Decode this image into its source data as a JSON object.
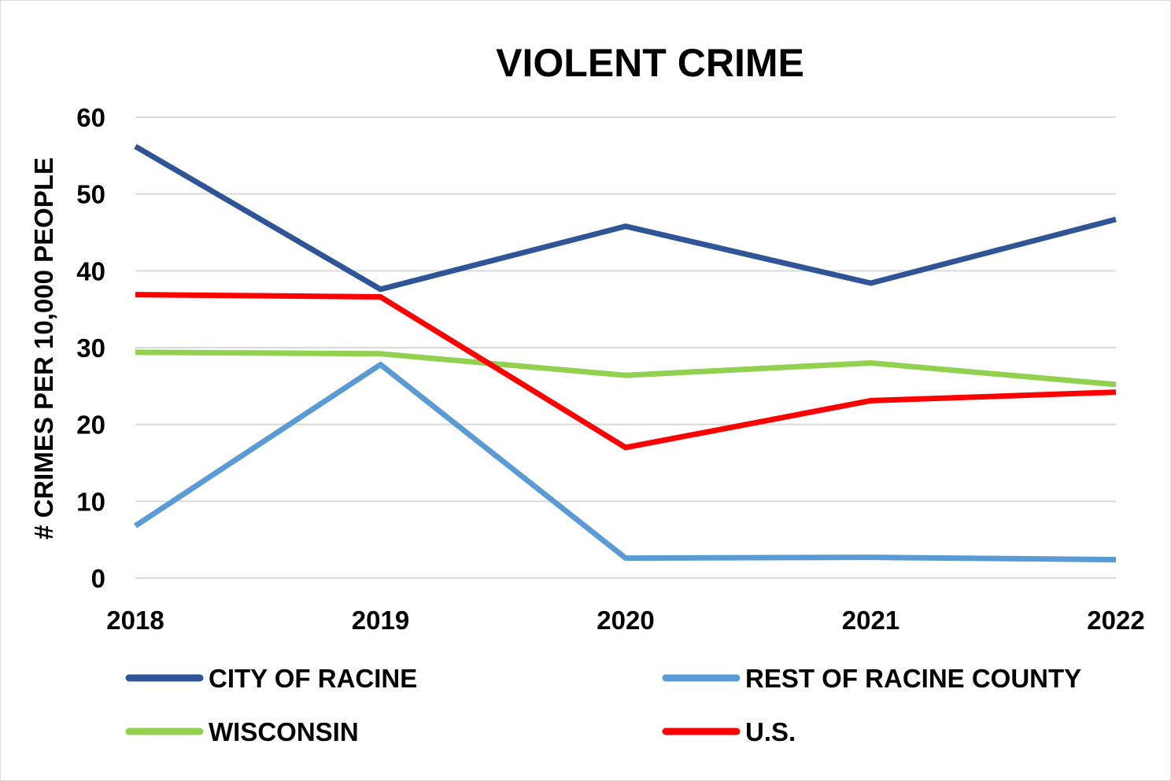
{
  "chart_data": {
    "type": "line",
    "title": "VIOLENT CRIME",
    "xlabel": "",
    "ylabel": "# CRIMES PER 10,000 PEOPLE",
    "categories": [
      "2018",
      "2019",
      "2020",
      "2021",
      "2022"
    ],
    "ylim": [
      0,
      60
    ],
    "yticks": [
      0,
      10,
      20,
      30,
      40,
      50,
      60
    ],
    "grid": true,
    "legend_position": "bottom",
    "series": [
      {
        "name": "CITY OF RACINE",
        "color": "#2F5597",
        "values": [
          56.2,
          37.6,
          45.8,
          38.4,
          46.7
        ]
      },
      {
        "name": "REST OF RACINE COUNTY",
        "color": "#5B9BD5",
        "values": [
          6.8,
          27.8,
          2.6,
          2.7,
          2.4
        ]
      },
      {
        "name": "WISCONSIN",
        "color": "#92D050",
        "values": [
          29.4,
          29.2,
          26.4,
          28.0,
          25.2
        ]
      },
      {
        "name": "U.S.",
        "color": "#FF0000",
        "values": [
          36.9,
          36.6,
          17.0,
          23.1,
          24.2
        ]
      }
    ]
  }
}
